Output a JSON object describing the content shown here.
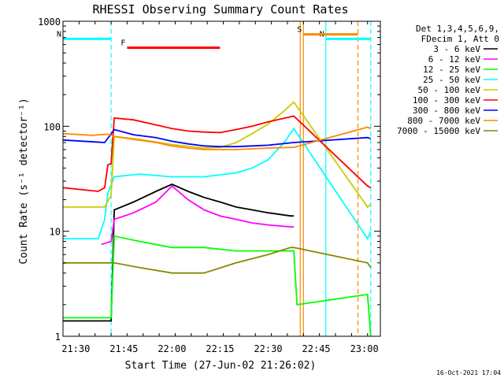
{
  "chart_data": {
    "type": "line",
    "title": "RHESSI Observing Summary Count Rates",
    "xlabel": "Start Time (27-Jun-02 21:26:02)",
    "ylabel": "Count Rate (s⁻¹ detector⁻¹)",
    "y_scale": "log",
    "ylim": [
      1,
      1000
    ],
    "x_start": "21:26",
    "x_end": "23:05",
    "x_ticks": [
      "21:30",
      "21:45",
      "22:00",
      "22:15",
      "22:30",
      "22:45",
      "23:00"
    ],
    "y_ticks": [
      "1",
      "10",
      "100",
      "1000"
    ],
    "legend_header": [
      "Det 1,3,4,5,6,9,",
      "FDecim 1, Att 0"
    ],
    "legend_position": "right",
    "footer": "16-Oct-2021 17:04",
    "series": [
      {
        "name": "3 - 6 keV",
        "color": "#000000",
        "points": [
          [
            "21:26",
            1.4
          ],
          [
            "21:37",
            1.4
          ],
          [
            "21:41",
            1.4
          ],
          [
            "21:42",
            16
          ],
          [
            "21:48",
            19
          ],
          [
            "21:55",
            24
          ],
          [
            "22:00",
            28
          ],
          [
            "22:05",
            24
          ],
          [
            "22:10",
            21
          ],
          [
            "22:15",
            19
          ],
          [
            "22:20",
            17
          ],
          [
            "22:25",
            16
          ],
          [
            "22:30",
            15
          ],
          [
            "22:37",
            14
          ],
          [
            "22:38",
            14
          ]
        ]
      },
      {
        "name": "6 - 12 keV",
        "color": "#ff00ff",
        "points": [
          [
            "21:38",
            7.5
          ],
          [
            "21:41",
            8
          ],
          [
            "21:42",
            13
          ],
          [
            "21:48",
            15
          ],
          [
            "21:55",
            19
          ],
          [
            "22:00",
            27
          ],
          [
            "22:05",
            20
          ],
          [
            "22:10",
            16
          ],
          [
            "22:15",
            14
          ],
          [
            "22:20",
            13
          ],
          [
            "22:25",
            12
          ],
          [
            "22:30",
            11.5
          ],
          [
            "22:37",
            11
          ],
          [
            "22:38",
            11
          ]
        ]
      },
      {
        "name": "12 - 25 keV",
        "color": "#00ff00",
        "points": [
          [
            "21:26",
            1.5
          ],
          [
            "21:41",
            1.5
          ],
          [
            "21:42",
            9
          ],
          [
            "21:50",
            8
          ],
          [
            "22:00",
            7
          ],
          [
            "22:10",
            7
          ],
          [
            "22:20",
            6.5
          ],
          [
            "22:30",
            6.5
          ],
          [
            "22:38",
            6.5
          ],
          [
            "22:39",
            2
          ],
          [
            "23:01",
            2.5
          ],
          [
            "23:02",
            1
          ]
        ]
      },
      {
        "name": "25 - 50 keV",
        "color": "#00ffff",
        "points": [
          [
            "21:26",
            8.5
          ],
          [
            "21:37",
            8.5
          ],
          [
            "21:39",
            13
          ],
          [
            "21:40",
            23
          ],
          [
            "21:42",
            33
          ],
          [
            "21:50",
            35
          ],
          [
            "22:00",
            33
          ],
          [
            "22:10",
            33
          ],
          [
            "22:20",
            36
          ],
          [
            "22:25",
            40
          ],
          [
            "22:30",
            48
          ],
          [
            "22:35",
            70
          ],
          [
            "22:38",
            95
          ],
          [
            "23:01",
            8.5
          ],
          [
            "23:02",
            10
          ]
        ]
      },
      {
        "name": "50 - 100 keV",
        "color": "#cccc00",
        "points": [
          [
            "21:26",
            17
          ],
          [
            "21:39",
            17
          ],
          [
            "21:41",
            22
          ],
          [
            "21:42",
            80
          ],
          [
            "21:50",
            75
          ],
          [
            "22:00",
            67
          ],
          [
            "22:10",
            62
          ],
          [
            "22:15",
            63
          ],
          [
            "22:20",
            70
          ],
          [
            "22:25",
            85
          ],
          [
            "22:30",
            105
          ],
          [
            "22:35",
            140
          ],
          [
            "22:38",
            170
          ],
          [
            "23:01",
            17
          ],
          [
            "23:02",
            18
          ]
        ]
      },
      {
        "name": "100 - 300 keV",
        "color": "#ff0000",
        "points": [
          [
            "21:26",
            26
          ],
          [
            "21:37",
            24
          ],
          [
            "21:39",
            26
          ],
          [
            "21:40",
            43
          ],
          [
            "21:41",
            44
          ],
          [
            "21:42",
            120
          ],
          [
            "21:48",
            115
          ],
          [
            "21:55",
            103
          ],
          [
            "22:00",
            95
          ],
          [
            "22:05",
            90
          ],
          [
            "22:10",
            88
          ],
          [
            "22:15",
            87
          ],
          [
            "22:20",
            93
          ],
          [
            "22:25",
            100
          ],
          [
            "22:30",
            110
          ],
          [
            "22:38",
            125
          ],
          [
            "23:01",
            27
          ],
          [
            "23:02",
            26
          ]
        ]
      },
      {
        "name": "300 - 800 keV",
        "color": "#0000ff",
        "points": [
          [
            "21:26",
            74
          ],
          [
            "21:39",
            70
          ],
          [
            "21:42",
            93
          ],
          [
            "21:48",
            83
          ],
          [
            "21:55",
            78
          ],
          [
            "22:00",
            72
          ],
          [
            "22:05",
            68
          ],
          [
            "22:10",
            65
          ],
          [
            "22:15",
            64
          ],
          [
            "22:20",
            64
          ],
          [
            "22:25",
            65
          ],
          [
            "22:30",
            66
          ],
          [
            "22:38",
            70
          ],
          [
            "23:01",
            78
          ],
          [
            "23:02",
            76
          ]
        ]
      },
      {
        "name": "800 - 7000 keV",
        "color": "#ff8800",
        "points": [
          [
            "21:26",
            85
          ],
          [
            "21:35",
            82
          ],
          [
            "21:40",
            84
          ],
          [
            "21:42",
            80
          ],
          [
            "21:48",
            75
          ],
          [
            "21:55",
            70
          ],
          [
            "22:00",
            65
          ],
          [
            "22:05",
            62
          ],
          [
            "22:10",
            60
          ],
          [
            "22:15",
            60
          ],
          [
            "22:20",
            60
          ],
          [
            "22:25",
            61
          ],
          [
            "22:30",
            62
          ],
          [
            "22:38",
            63
          ],
          [
            "23:01",
            98
          ],
          [
            "23:02",
            95
          ]
        ]
      },
      {
        "name": "7000 - 15000 keV",
        "color": "#888800",
        "points": [
          [
            "21:26",
            5
          ],
          [
            "21:38",
            5
          ],
          [
            "21:40",
            5
          ],
          [
            "21:42",
            5
          ],
          [
            "21:50",
            4.5
          ],
          [
            "22:00",
            4
          ],
          [
            "22:10",
            4
          ],
          [
            "22:20",
            5
          ],
          [
            "22:30",
            6
          ],
          [
            "22:37",
            7
          ],
          [
            "22:38",
            7
          ],
          [
            "23:01",
            5
          ],
          [
            "23:02",
            4.5
          ]
        ]
      }
    ],
    "flag_bars": [
      {
        "label": "N",
        "color": "#00ffff",
        "start": "21:26",
        "end": "21:41",
        "level": 680
      },
      {
        "label": "N",
        "color": "#00ffff",
        "start": "22:48",
        "end": "23:02",
        "level": 680
      },
      {
        "label": "F",
        "color": "#ff0000",
        "start": "21:46",
        "end": "22:15",
        "level": 560
      },
      {
        "label": "S",
        "color": "#ff8800",
        "start": "22:41",
        "end": "22:58",
        "level": 750
      }
    ],
    "vertical_lines": [
      {
        "color": "#00ffff",
        "time": "21:41",
        "style": "dashed"
      },
      {
        "color": "#00ffff",
        "time": "22:48",
        "style": "solid"
      },
      {
        "color": "#00ffff",
        "time": "23:02",
        "style": "dashed"
      },
      {
        "color": "#ff8800",
        "time": "22:40",
        "style": "solid"
      },
      {
        "color": "#ff8800",
        "time": "22:41",
        "style": "solid"
      },
      {
        "color": "#ff8800",
        "time": "22:58",
        "style": "dashed"
      }
    ]
  }
}
